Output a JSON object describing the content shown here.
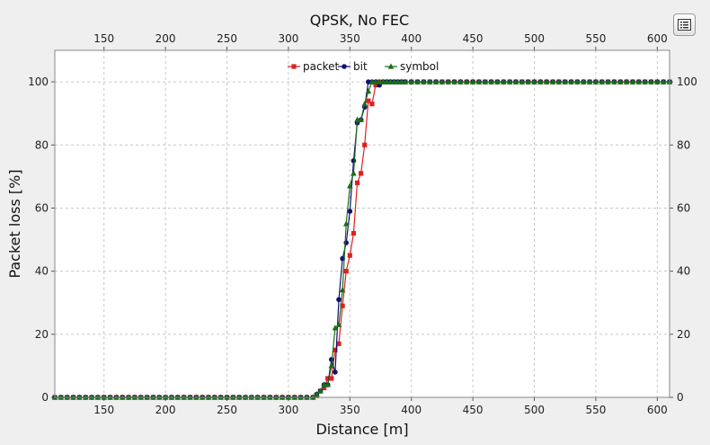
{
  "chart_data": {
    "type": "line",
    "title": "QPSK, No FEC",
    "xlabel": "Distance [m]",
    "ylabel": "Packet loss [%]",
    "xlim": [
      110,
      610
    ],
    "ylim": [
      0,
      110
    ],
    "x_ticks": [
      150,
      200,
      250,
      300,
      350,
      400,
      450,
      500,
      550,
      600
    ],
    "y_ticks": [
      0,
      20,
      40,
      60,
      80,
      100
    ],
    "grid": true,
    "legend_position": "top-center",
    "series": [
      {
        "name": "packet",
        "color": "#e02020",
        "marker": "square",
        "x": [
          110,
          115,
          120,
          125,
          130,
          135,
          140,
          145,
          150,
          155,
          160,
          165,
          170,
          175,
          180,
          185,
          190,
          195,
          200,
          205,
          210,
          215,
          220,
          225,
          230,
          235,
          240,
          245,
          250,
          255,
          260,
          265,
          270,
          275,
          280,
          285,
          290,
          295,
          300,
          305,
          310,
          315,
          320,
          323,
          326,
          329,
          332,
          335,
          338,
          341,
          344,
          347,
          350,
          353,
          356,
          359,
          362,
          365,
          368,
          371,
          374,
          377,
          380,
          383,
          386,
          389,
          392,
          395,
          400,
          405,
          410,
          415,
          420,
          425,
          430,
          435,
          440,
          445,
          450,
          455,
          460,
          465,
          470,
          475,
          480,
          485,
          490,
          495,
          500,
          505,
          510,
          515,
          520,
          525,
          530,
          535,
          540,
          545,
          550,
          555,
          560,
          565,
          570,
          575,
          580,
          585,
          590,
          595,
          600,
          605,
          610
        ],
        "values": [
          0,
          0,
          0,
          0,
          0,
          0,
          0,
          0,
          0,
          0,
          0,
          0,
          0,
          0,
          0,
          0,
          0,
          0,
          0,
          0,
          0,
          0,
          0,
          0,
          0,
          0,
          0,
          0,
          0,
          0,
          0,
          0,
          0,
          0,
          0,
          0,
          0,
          0,
          0,
          0,
          0,
          0,
          0,
          0.5,
          2,
          3,
          6,
          6,
          15,
          17,
          29,
          40,
          45,
          52,
          68,
          71,
          80,
          94,
          93,
          99,
          100,
          100,
          100,
          100,
          100,
          100,
          100,
          100,
          100,
          100,
          100,
          100,
          100,
          100,
          100,
          100,
          100,
          100,
          100,
          100,
          100,
          100,
          100,
          100,
          100,
          100,
          100,
          100,
          100,
          100,
          100,
          100,
          100,
          100,
          100,
          100,
          100,
          100,
          100,
          100,
          100,
          100,
          100,
          100,
          100,
          100,
          100,
          100,
          100,
          100,
          100
        ]
      },
      {
        "name": "bit",
        "color": "#10106e",
        "marker": "circle",
        "x": [
          110,
          115,
          120,
          125,
          130,
          135,
          140,
          145,
          150,
          155,
          160,
          165,
          170,
          175,
          180,
          185,
          190,
          195,
          200,
          205,
          210,
          215,
          220,
          225,
          230,
          235,
          240,
          245,
          250,
          255,
          260,
          265,
          270,
          275,
          280,
          285,
          290,
          295,
          300,
          305,
          310,
          315,
          320,
          323,
          326,
          329,
          332,
          335,
          338,
          341,
          344,
          347,
          350,
          353,
          356,
          359,
          362,
          365,
          368,
          371,
          374,
          377,
          380,
          383,
          386,
          389,
          392,
          395,
          400,
          405,
          410,
          415,
          420,
          425,
          430,
          435,
          440,
          445,
          450,
          455,
          460,
          465,
          470,
          475,
          480,
          485,
          490,
          495,
          500,
          505,
          510,
          515,
          520,
          525,
          530,
          535,
          540,
          545,
          550,
          555,
          560,
          565,
          570,
          575,
          580,
          585,
          590,
          595,
          600,
          605,
          610
        ],
        "values": [
          0,
          0,
          0,
          0,
          0,
          0,
          0,
          0,
          0,
          0,
          0,
          0,
          0,
          0,
          0,
          0,
          0,
          0,
          0,
          0,
          0,
          0,
          0,
          0,
          0,
          0,
          0,
          0,
          0,
          0,
          0,
          0,
          0,
          0,
          0,
          0,
          0,
          0,
          0,
          0,
          0,
          0,
          0,
          1,
          2,
          4,
          4,
          12,
          8,
          31,
          44,
          49,
          59,
          75,
          87,
          88,
          92,
          100,
          100,
          100,
          99,
          100,
          100,
          100,
          100,
          100,
          100,
          100,
          100,
          100,
          100,
          100,
          100,
          100,
          100,
          100,
          100,
          100,
          100,
          100,
          100,
          100,
          100,
          100,
          100,
          100,
          100,
          100,
          100,
          100,
          100,
          100,
          100,
          100,
          100,
          100,
          100,
          100,
          100,
          100,
          100,
          100,
          100,
          100,
          100,
          100,
          100,
          100,
          100,
          100,
          100
        ]
      },
      {
        "name": "symbol",
        "color": "#1a6e1a",
        "marker": "triangle",
        "x": [
          110,
          115,
          120,
          125,
          130,
          135,
          140,
          145,
          150,
          155,
          160,
          165,
          170,
          175,
          180,
          185,
          190,
          195,
          200,
          205,
          210,
          215,
          220,
          225,
          230,
          235,
          240,
          245,
          250,
          255,
          260,
          265,
          270,
          275,
          280,
          285,
          290,
          295,
          300,
          305,
          310,
          315,
          320,
          323,
          326,
          329,
          332,
          335,
          338,
          341,
          344,
          347,
          350,
          353,
          356,
          359,
          362,
          365,
          368,
          371,
          374,
          377,
          380,
          383,
          386,
          389,
          392,
          395,
          400,
          405,
          410,
          415,
          420,
          425,
          430,
          435,
          440,
          445,
          450,
          455,
          460,
          465,
          470,
          475,
          480,
          485,
          490,
          495,
          500,
          505,
          510,
          515,
          520,
          525,
          530,
          535,
          540,
          545,
          550,
          555,
          560,
          565,
          570,
          575,
          580,
          585,
          590,
          595,
          600,
          605,
          610
        ],
        "values": [
          0,
          0,
          0,
          0,
          0,
          0,
          0,
          0,
          0,
          0,
          0,
          0,
          0,
          0,
          0,
          0,
          0,
          0,
          0,
          0,
          0,
          0,
          0,
          0,
          0,
          0,
          0,
          0,
          0,
          0,
          0,
          0,
          0,
          0,
          0,
          0,
          0,
          0,
          0,
          0,
          0,
          0,
          0,
          1,
          2,
          4,
          4,
          10,
          22,
          23,
          34,
          55,
          67,
          71,
          88,
          88,
          93,
          97,
          100,
          100,
          100,
          100,
          100,
          100,
          100,
          100,
          100,
          100,
          100,
          100,
          100,
          100,
          100,
          100,
          100,
          100,
          100,
          100,
          100,
          100,
          100,
          100,
          100,
          100,
          100,
          100,
          100,
          100,
          100,
          100,
          100,
          100,
          100,
          100,
          100,
          100,
          100,
          100,
          100,
          100,
          100,
          100,
          100,
          100,
          100,
          100,
          100,
          100,
          100,
          100,
          100
        ]
      }
    ]
  },
  "menu_button": {
    "icon": "list-menu-icon"
  }
}
